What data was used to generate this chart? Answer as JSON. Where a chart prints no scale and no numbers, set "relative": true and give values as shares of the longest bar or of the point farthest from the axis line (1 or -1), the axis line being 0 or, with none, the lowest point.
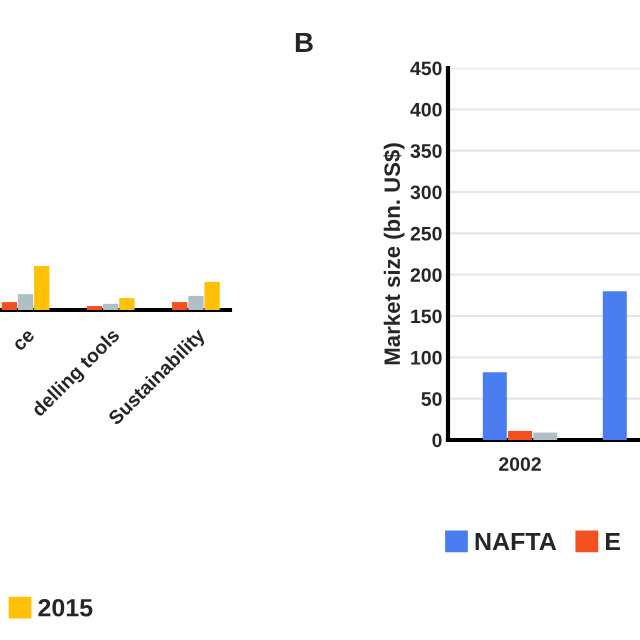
{
  "chart_data": [
    {
      "type": "bar",
      "relative": true,
      "categories": [
        "ce",
        "delling tools",
        "Sustainability"
      ],
      "legend": "bottom",
      "series": [
        {
          "color": "#f4511e",
          "values": [
            0.18,
            0.09,
            0.18
          ]
        },
        {
          "color": "#b0bec5",
          "values": [
            0.36,
            0.14,
            0.32
          ]
        },
        {
          "name": "2015",
          "color": "#ffc107",
          "values": [
            1,
            0.27,
            0.64
          ]
        }
      ]
    },
    {
      "type": "bar",
      "title": "B",
      "ylabel": "Market size (bn. US$)",
      "categories": [
        "2002",
        null
      ],
      "ylim": [
        0,
        450
      ],
      "yticks": [
        0,
        50,
        100,
        150,
        200,
        250,
        300,
        350,
        400,
        450
      ],
      "grid": "y",
      "legend": "bottom",
      "series": [
        {
          "name": "NAFTA",
          "color": "#4a7ef0",
          "values": [
            82,
            180
          ]
        },
        {
          "name": "E",
          "color": "#f4511e",
          "values": [
            11,
            null
          ]
        },
        {
          "color": "#b0bec5",
          "values": [
            9,
            null
          ]
        }
      ]
    }
  ]
}
